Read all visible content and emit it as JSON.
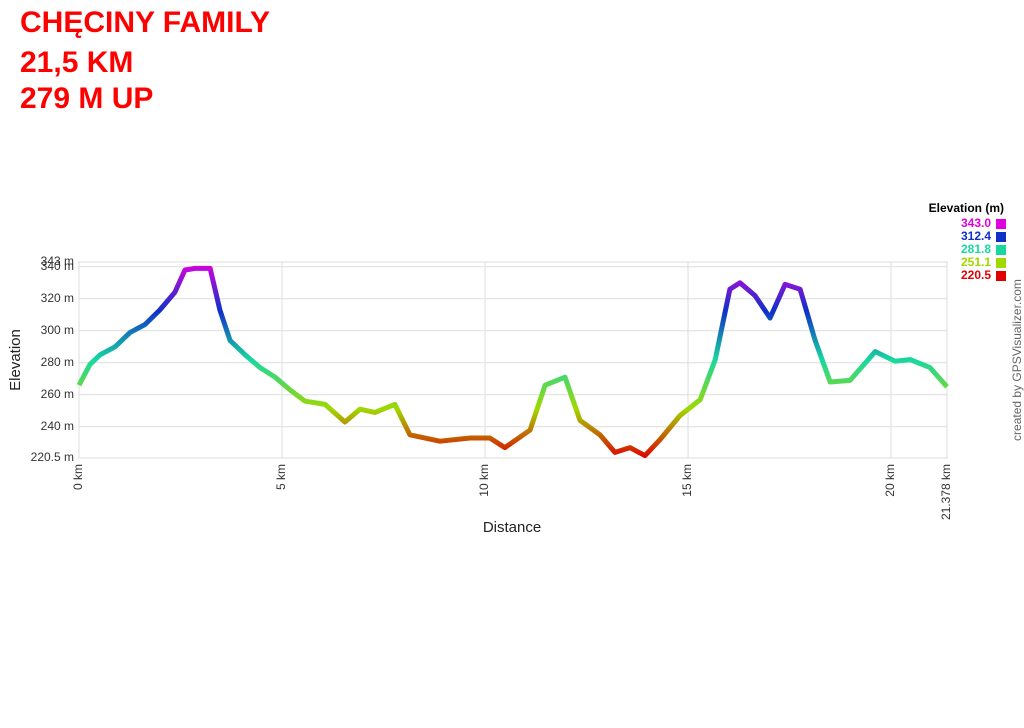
{
  "header": {
    "lines": [
      "CHĘCINY FAMILY",
      "21,5 KM",
      "279 M UP"
    ]
  },
  "chart_data": {
    "type": "line",
    "x_label": "Distance",
    "y_label": "Elevation",
    "x": [
      0,
      0.27,
      0.52,
      0.89,
      1.26,
      1.63,
      1.99,
      2.36,
      2.61,
      2.86,
      3.23,
      3.47,
      3.72,
      4.09,
      4.46,
      4.83,
      5.2,
      5.57,
      6.06,
      6.55,
      6.92,
      7.29,
      7.78,
      8.15,
      8.89,
      9.63,
      10.12,
      10.49,
      11.11,
      11.48,
      11.97,
      12.34,
      12.83,
      13.2,
      13.57,
      13.94,
      14.31,
      14.8,
      15.3,
      15.67,
      16.03,
      16.28,
      16.65,
      17.02,
      17.39,
      17.76,
      18.13,
      18.5,
      18.99,
      19.61,
      20.1,
      20.47,
      20.96,
      21.378
    ],
    "series": [
      {
        "name": "Elevation (m)",
        "values": [
          266,
          279,
          285,
          290,
          299,
          304,
          313,
          324,
          338,
          339,
          339,
          313,
          294,
          285,
          277,
          271,
          263,
          256,
          254,
          243,
          251,
          249,
          254,
          235,
          231,
          233,
          233,
          227,
          238,
          266,
          271,
          244,
          235,
          224,
          227,
          222,
          232,
          247,
          257,
          282,
          326,
          330,
          322,
          308,
          329,
          326,
          294,
          268,
          269,
          287,
          281,
          282,
          277,
          265
        ]
      }
    ],
    "xlim": [
      0,
      21.378
    ],
    "xticks": [
      {
        "value": 0,
        "label": "0 km"
      },
      {
        "value": 5,
        "label": "5 km"
      },
      {
        "value": 10,
        "label": "10 km"
      },
      {
        "value": 15,
        "label": "15 km"
      },
      {
        "value": 20,
        "label": "20 km"
      },
      {
        "value": 21.378,
        "label": "21.378 km"
      }
    ],
    "ylim": [
      220.5,
      343
    ],
    "yticks": [
      {
        "value": 220.5,
        "label": "220.5 m"
      },
      {
        "value": 240,
        "label": "240 m"
      },
      {
        "value": 260,
        "label": "260 m"
      },
      {
        "value": 280,
        "label": "280 m"
      },
      {
        "value": 300,
        "label": "300 m"
      },
      {
        "value": 320,
        "label": "320 m"
      },
      {
        "value": 340,
        "label": "340 m"
      },
      {
        "value": 343,
        "label": "343 m"
      }
    ],
    "grid": true,
    "color_scale": {
      "title": "Elevation (m)",
      "entries": [
        {
          "value": 343.0,
          "label": "343.0",
          "color": "#e000e0"
        },
        {
          "value": 312.4,
          "label": "312.4",
          "color": "#1030c8"
        },
        {
          "value": 281.8,
          "label": "281.8",
          "color": "#18d8a0"
        },
        {
          "value": 251.1,
          "label": "251.1",
          "color": "#a0d800"
        },
        {
          "value": 220.5,
          "label": "220.5",
          "color": "#e00000"
        }
      ]
    },
    "credit": "created by GPSVisualizer.com"
  }
}
